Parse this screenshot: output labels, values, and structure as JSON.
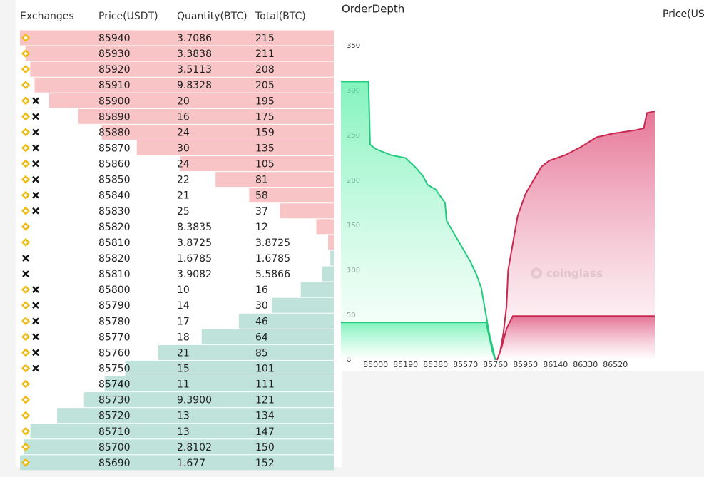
{
  "table": {
    "header": [
      "Exchanges",
      "Price(USDT)",
      "Quantity(BTC)",
      "Total(BTC)"
    ],
    "asks": [
      {
        "price": 85940,
        "quantity": 3.7086,
        "total": 215
      },
      {
        "price": 85930,
        "quantity": 3.3838,
        "total": 211
      },
      {
        "price": 85920,
        "quantity": 3.5113,
        "total": 208
      },
      {
        "price": 85910,
        "quantity": 9.8328,
        "total": 205
      },
      {
        "price": 85900,
        "quantity": 20,
        "total": 195
      },
      {
        "price": 85890,
        "quantity": 16,
        "total": 175
      },
      {
        "price": 85880,
        "quantity": 24,
        "total": 159
      },
      {
        "price": 85870,
        "quantity": 30,
        "total": 135
      },
      {
        "price": 85860,
        "quantity": 24,
        "total": 105
      },
      {
        "price": 85850,
        "quantity": 22,
        "total": 81
      },
      {
        "price": 85840,
        "quantity": 21,
        "total": 58
      },
      {
        "price": 85830,
        "quantity": 25,
        "total": 37
      },
      {
        "price": 85820,
        "quantity": 8.3835,
        "total": 12
      },
      {
        "price": 85810,
        "quantity": 3.8725,
        "total": 3.8725
      }
    ],
    "bids": [
      {
        "price": 85820,
        "quantity": 1.6785,
        "total": 1.6785
      },
      {
        "price": 85810,
        "quantity": 3.9082,
        "total": 5.5866
      },
      {
        "price": 85800,
        "quantity": 10,
        "total": 16
      },
      {
        "price": 85790,
        "quantity": 14,
        "total": 30
      },
      {
        "price": 85780,
        "quantity": 17,
        "total": 46
      },
      {
        "price": 85770,
        "quantity": 18,
        "total": 64
      },
      {
        "price": 85760,
        "quantity": 21,
        "total": 85
      },
      {
        "price": 85750,
        "quantity": 15,
        "total": 101
      },
      {
        "price": 85740,
        "quantity": 11,
        "total": 111
      },
      {
        "price": 85730,
        "quantity": "9.3900",
        "total": 121
      },
      {
        "price": 85720,
        "quantity": 13,
        "total": 134
      },
      {
        "price": 85710,
        "quantity": 13,
        "total": 147
      },
      {
        "price": 85700,
        "quantity": 2.8102,
        "total": 150
      },
      {
        "price": 85690,
        "quantity": 1.677,
        "total": 152
      }
    ],
    "ask_color": "#f8c4c6",
    "bid_color": "#bfe2da"
  },
  "chart_data": {
    "type": "area",
    "title": "OrderDepth",
    "axis_label": "Price(US",
    "watermark": "coinglass",
    "xlim": [
      84780,
      86770
    ],
    "ylim": [
      0,
      350
    ],
    "yticks": [
      0,
      50,
      100,
      150,
      200,
      250,
      300,
      350
    ],
    "xticks": [
      85000,
      85190,
      85380,
      85570,
      85760,
      85950,
      86140,
      86330,
      86520
    ],
    "series": [
      {
        "color": "#25c97e",
        "fill": "#5ef0aa",
        "x": [
          84780,
          84955,
          84965,
          85000,
          85100,
          85190,
          85250,
          85300,
          85330,
          85380,
          85420,
          85440,
          85450,
          85500,
          85550,
          85600,
          85640,
          85670,
          85700,
          85720,
          85740,
          85760
        ],
        "values": [
          310,
          310,
          240,
          235,
          228,
          225,
          215,
          205,
          195,
          190,
          180,
          175,
          155,
          140,
          125,
          110,
          95,
          80,
          50,
          30,
          15,
          0
        ]
      },
      {
        "color": "#c9284f",
        "fill": "#e0557f",
        "x": [
          85770,
          85790,
          85810,
          85830,
          85840,
          85870,
          85900,
          85950,
          86000,
          86050,
          86100,
          86200,
          86300,
          86400,
          86500,
          86650,
          86700,
          86720,
          86770
        ],
        "values": [
          0,
          10,
          30,
          60,
          100,
          130,
          160,
          185,
          200,
          215,
          222,
          228,
          237,
          248,
          252,
          256,
          258,
          275,
          277
        ]
      },
      {
        "color": "#25c97e",
        "fill": "#5ef0aa",
        "x": [
          84780,
          85700,
          85740,
          85760
        ],
        "values": [
          42,
          42,
          10,
          0
        ]
      },
      {
        "color": "#c9284f",
        "fill": "#e0557f",
        "x": [
          85770,
          85800,
          85830,
          85870,
          86770
        ],
        "values": [
          0,
          15,
          35,
          49,
          49
        ]
      }
    ]
  }
}
